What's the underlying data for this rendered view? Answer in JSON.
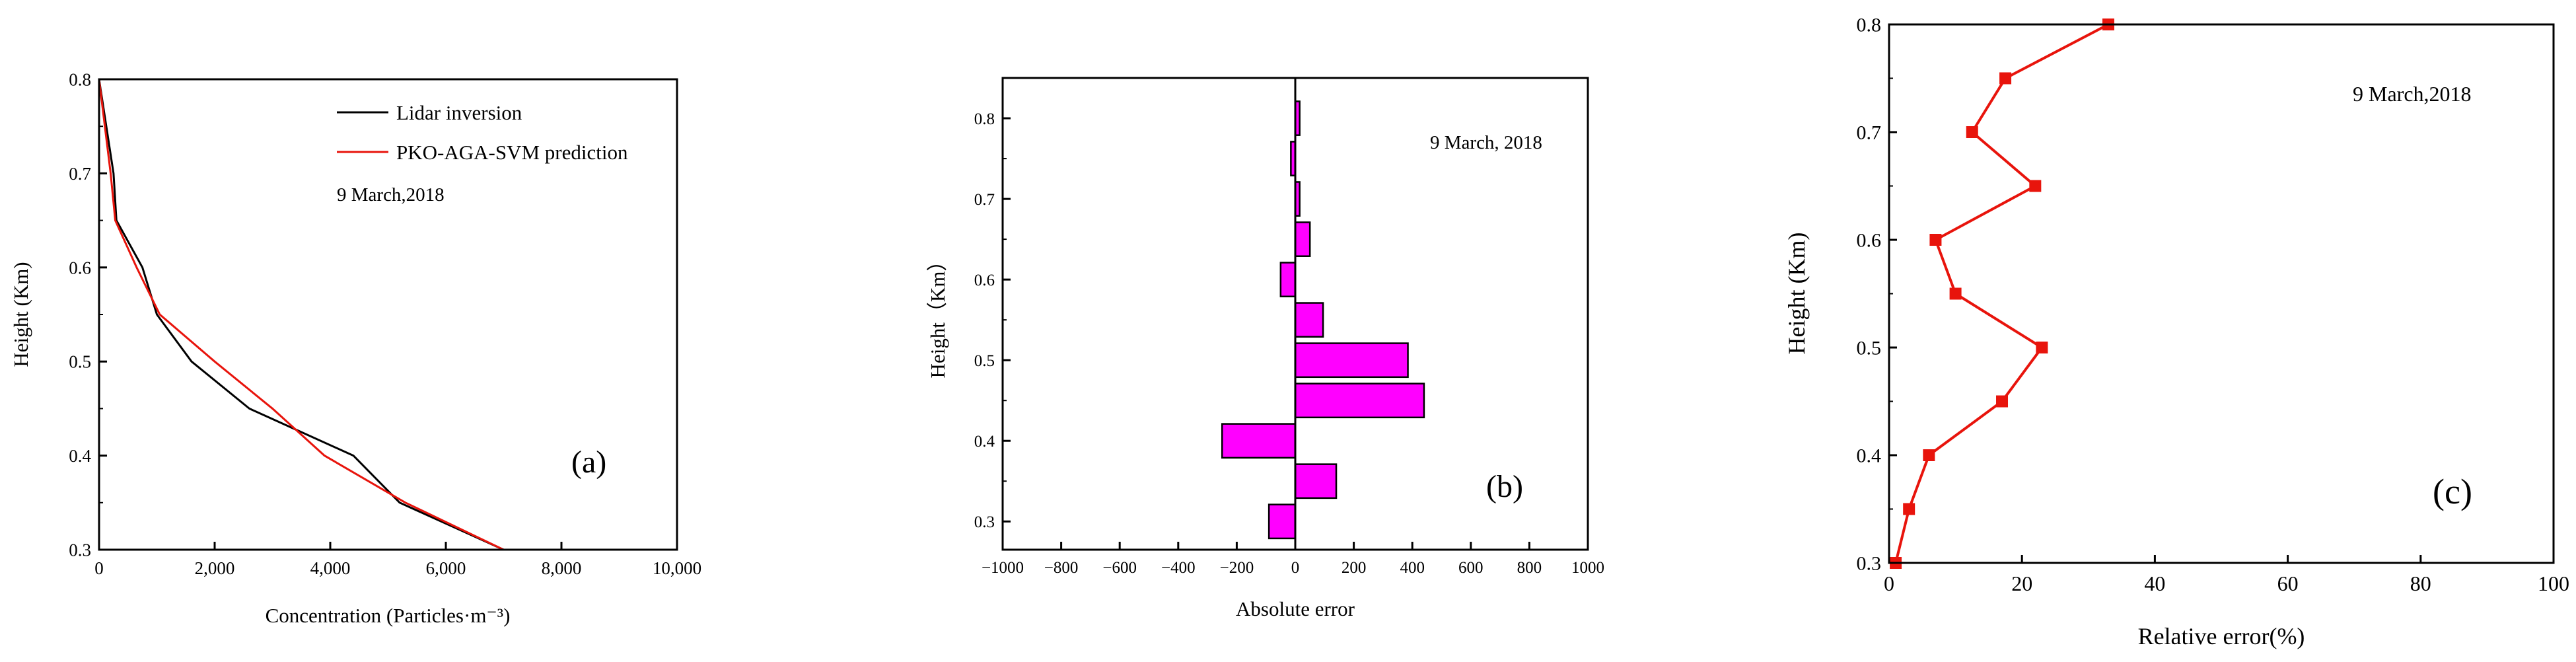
{
  "chart_data": [
    {
      "type": "line",
      "panel_label": "(a)",
      "annotation": "9 March,2018",
      "xlabel": "Concentration (Particles·m⁻³)",
      "ylabel": "Height (Km)",
      "xlim": [
        0,
        10000
      ],
      "ylim": [
        0.3,
        0.8
      ],
      "xticks": [
        "0",
        "2,000",
        "4,000",
        "6,000",
        "8,000",
        "10,000"
      ],
      "yticks": [
        "0.3",
        "0.4",
        "0.5",
        "0.6",
        "0.7",
        "0.8"
      ],
      "legend_position": "top-right",
      "series": [
        {
          "name": "Lidar inversion",
          "color": "#000000",
          "x": [
            7000,
            5200,
            4400,
            2600,
            1600,
            1000,
            750,
            300,
            250,
            0
          ],
          "y": [
            0.3,
            0.35,
            0.4,
            0.45,
            0.5,
            0.55,
            0.6,
            0.65,
            0.7,
            0.8
          ]
        },
        {
          "name": "PKO-AGA-SVM prediction",
          "color": "#e8140c",
          "x": [
            7000,
            5300,
            3900,
            3000,
            2000,
            1050,
            650,
            280,
            200,
            0
          ],
          "y": [
            0.3,
            0.35,
            0.4,
            0.45,
            0.5,
            0.55,
            0.6,
            0.65,
            0.7,
            0.8
          ]
        }
      ]
    },
    {
      "type": "bar",
      "orientation": "horizontal",
      "panel_label": "(b)",
      "annotation": "9 March, 2018",
      "xlabel": "Absolute error",
      "ylabel": "Height（Km）",
      "xlim": [
        -1000,
        1000
      ],
      "ylim": [
        0.265,
        0.85
      ],
      "xticks": [
        "−1000",
        "−800",
        "−600",
        "−400",
        "−200",
        "0",
        "200",
        "400",
        "600",
        "800",
        "1000"
      ],
      "yticks": [
        "0.3",
        "0.4",
        "0.5",
        "0.6",
        "0.7",
        "0.8"
      ],
      "bar_color": "#ff00ff",
      "heights": [
        0.3,
        0.35,
        0.4,
        0.45,
        0.5,
        0.55,
        0.6,
        0.65,
        0.7,
        0.75,
        0.8
      ],
      "values": [
        -90,
        140,
        -250,
        440,
        385,
        95,
        -50,
        50,
        15,
        -15,
        15
      ]
    },
    {
      "type": "line",
      "panel_label": "(c)",
      "annotation": "9 March,2018",
      "xlabel": "Relative error(%)",
      "ylabel": "Height (Km)",
      "xlim": [
        0,
        100
      ],
      "ylim": [
        0.3,
        0.8
      ],
      "xticks": [
        "0",
        "20",
        "40",
        "60",
        "80",
        "100"
      ],
      "yticks": [
        "0.3",
        "0.4",
        "0.5",
        "0.6",
        "0.7",
        "0.8"
      ],
      "series": [
        {
          "color": "#e8140c",
          "x": [
            1,
            3,
            6,
            17,
            23,
            10,
            7,
            22,
            12.5,
            17.5,
            33
          ],
          "y": [
            0.3,
            0.35,
            0.4,
            0.45,
            0.5,
            0.55,
            0.6,
            0.65,
            0.7,
            0.75,
            0.8
          ]
        }
      ]
    }
  ]
}
